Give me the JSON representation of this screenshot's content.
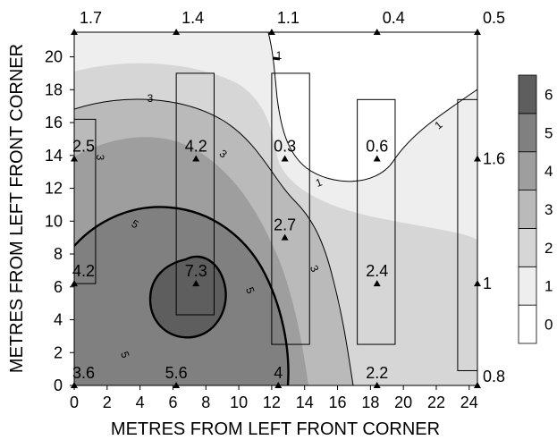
{
  "chart_data": {
    "type": "heatmap",
    "subtype": "filled-contour",
    "title": "",
    "xlabel": "METRES FROM LEFT FRONT CORNER",
    "ylabel": "METRES FROM LEFT FRONT CORNER",
    "xlim": [
      0,
      24.5
    ],
    "ylim": [
      0,
      21.5
    ],
    "x_ticks": [
      "0",
      "2",
      "4",
      "6",
      "8",
      "10",
      "12",
      "14",
      "16",
      "18",
      "20",
      "22",
      "24"
    ],
    "y_ticks": [
      "0",
      "2",
      "4",
      "6",
      "8",
      "10",
      "12",
      "14",
      "16",
      "18",
      "20"
    ],
    "colorbar": {
      "levels": [
        "0",
        "1",
        "2",
        "3",
        "4",
        "5",
        "6"
      ],
      "colors": [
        "#ffffff",
        "#eeeeee",
        "#d6d6d6",
        "#bababa",
        "#9e9e9e",
        "#808080",
        "#5e5e5e"
      ]
    },
    "contour_labels": [
      "1",
      "1",
      "1",
      "3",
      "3",
      "3",
      "3",
      "5",
      "5",
      "5"
    ],
    "measurements": [
      {
        "x": 0,
        "y": 21.5,
        "value": "1.7"
      },
      {
        "x": 6.2,
        "y": 21.5,
        "value": "1.4"
      },
      {
        "x": 12,
        "y": 21.5,
        "value": "1.1"
      },
      {
        "x": 18.4,
        "y": 21.5,
        "value": "0.4"
      },
      {
        "x": 24.5,
        "y": 21.5,
        "value": "0.5"
      },
      {
        "x": 0,
        "y": 13.8,
        "value": "2.5"
      },
      {
        "x": 7.4,
        "y": 13.8,
        "value": "4.2"
      },
      {
        "x": 12.8,
        "y": 13.8,
        "value": "0.3"
      },
      {
        "x": 18.4,
        "y": 13.8,
        "value": "0.6"
      },
      {
        "x": 24.5,
        "y": 13.8,
        "value": "1.6"
      },
      {
        "x": 12.8,
        "y": 9,
        "value": "2.7"
      },
      {
        "x": 0,
        "y": 6.2,
        "value": "4.2"
      },
      {
        "x": 7.4,
        "y": 6.2,
        "value": "7.3"
      },
      {
        "x": 18.4,
        "y": 6.2,
        "value": "2.4"
      },
      {
        "x": 24.5,
        "y": 6.2,
        "value": "1"
      },
      {
        "x": 0,
        "y": 0,
        "value": "3.6"
      },
      {
        "x": 6.2,
        "y": 0,
        "value": "5.6"
      },
      {
        "x": 12.4,
        "y": 0,
        "value": "4"
      },
      {
        "x": 18.4,
        "y": 0,
        "value": "2.2"
      },
      {
        "x": 24.5,
        "y": 0,
        "value": "0.8"
      }
    ],
    "rectangles": [
      {
        "x0": 0,
        "x1": 1.3,
        "y0": 6.2,
        "y1": 16.2
      },
      {
        "x0": 6.2,
        "x1": 8.5,
        "y0": 4.3,
        "y1": 19
      },
      {
        "x0": 12,
        "x1": 14.3,
        "y0": 2.5,
        "y1": 19
      },
      {
        "x0": 17.2,
        "x1": 19.5,
        "y0": 2.5,
        "y1": 17.4
      },
      {
        "x0": 23.3,
        "x1": 24.5,
        "y0": 0.9,
        "y1": 17.4
      }
    ]
  }
}
